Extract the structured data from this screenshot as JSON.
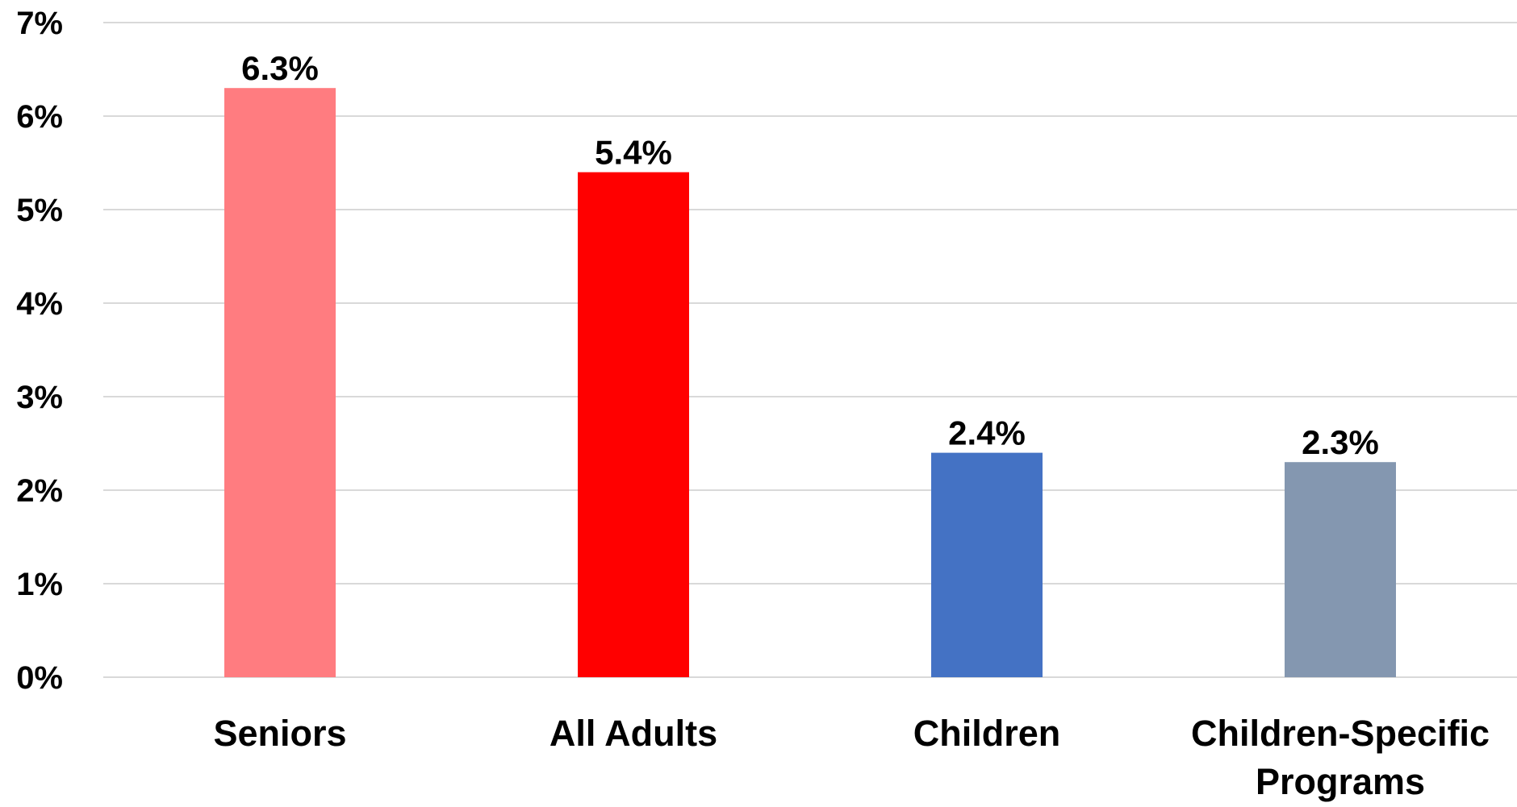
{
  "chart_data": {
    "type": "bar",
    "title": "",
    "xlabel": "",
    "ylabel": "",
    "categories": [
      "Seniors",
      "All Adults",
      "Children",
      "Children-Specific Programs"
    ],
    "category_lines": [
      [
        "Seniors"
      ],
      [
        "All Adults"
      ],
      [
        "Children"
      ],
      [
        "Children-Specific",
        "Programs"
      ]
    ],
    "values": [
      6.3,
      5.4,
      2.4,
      2.3
    ],
    "data_labels": [
      "6.3%",
      "5.4%",
      "2.4%",
      "2.3%"
    ],
    "bar_colors": [
      "#ff7c80",
      "#ff0000",
      "#4472c4",
      "#8497b0"
    ],
    "ylim": [
      0,
      7
    ],
    "yticks": [
      0,
      1,
      2,
      3,
      4,
      5,
      6,
      7
    ],
    "ytick_labels": [
      "0%",
      "1%",
      "2%",
      "3%",
      "4%",
      "5%",
      "6%",
      "7%"
    ],
    "grid": true,
    "legend": "none"
  }
}
